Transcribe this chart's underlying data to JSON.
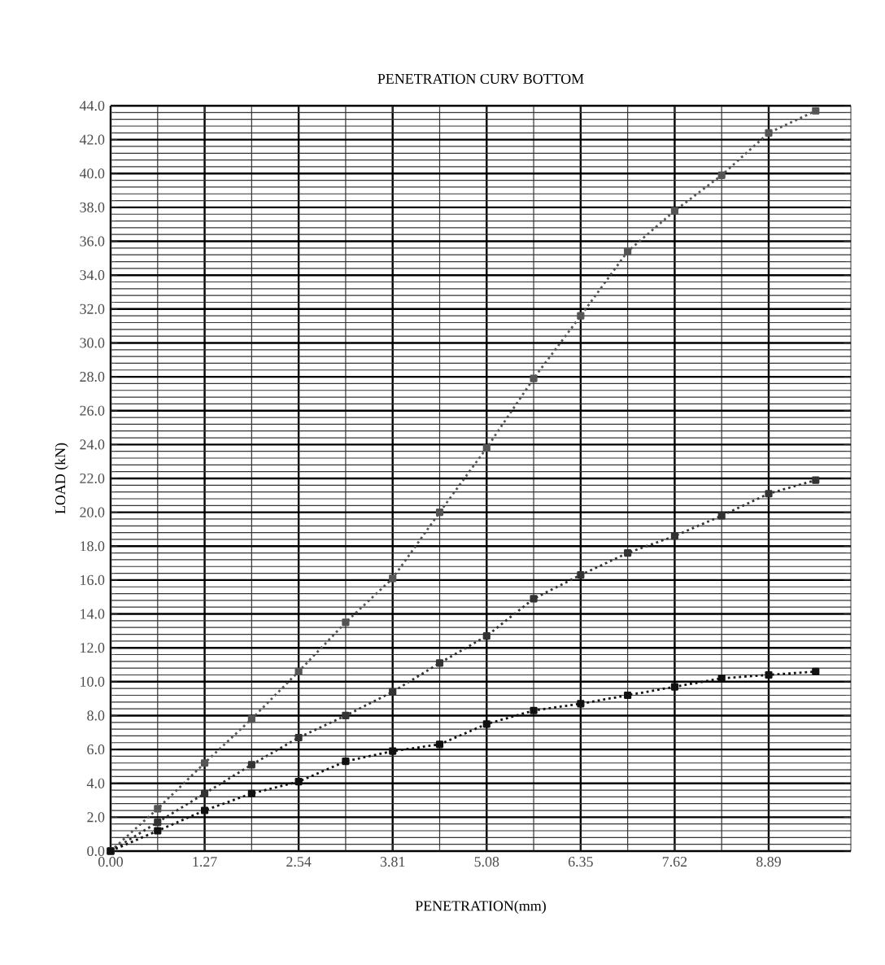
{
  "chart_data": {
    "type": "line",
    "title": "PENETRATION CURV BOTTOM",
    "xlabel": "PENETRATION(mm)",
    "ylabel": "LOAD (kN)",
    "x": [
      0,
      0.635,
      1.27,
      1.905,
      2.54,
      3.175,
      3.81,
      4.445,
      5.08,
      5.715,
      6.35,
      6.985,
      7.62,
      8.255,
      8.89,
      9.525
    ],
    "series": [
      {
        "color": "#555555",
        "values": [
          0,
          2.5,
          5.2,
          7.8,
          10.6,
          13.5,
          16.1,
          20.0,
          23.8,
          27.9,
          31.6,
          35.4,
          37.8,
          39.9,
          42.4,
          43.7
        ]
      },
      {
        "color": "#333333",
        "values": [
          0,
          1.7,
          3.4,
          5.1,
          6.7,
          8.0,
          9.4,
          11.1,
          12.7,
          14.9,
          16.3,
          17.6,
          18.6,
          19.8,
          21.1,
          21.9
        ]
      },
      {
        "color": "#111111",
        "values": [
          0,
          1.2,
          2.4,
          3.4,
          4.1,
          5.3,
          5.9,
          6.3,
          7.5,
          8.3,
          8.7,
          9.2,
          9.7,
          10.2,
          10.4,
          10.6
        ]
      }
    ],
    "xlim": [
      0,
      10.0
    ],
    "xticks": [
      {
        "value": 0,
        "label": "0.00"
      },
      1.27,
      2.54,
      3.81,
      5.08,
      6.35,
      7.62,
      8.89
    ],
    "ylim": [
      0,
      44
    ],
    "yticks": [
      {
        "value": 0,
        "label": "0.0"
      },
      {
        "value": 2,
        "label": "2.0"
      },
      {
        "value": 4,
        "label": "4.0"
      },
      {
        "value": 6,
        "label": "6.0"
      },
      {
        "value": 8,
        "label": "8.0"
      },
      {
        "value": 10,
        "label": "10.0"
      },
      {
        "value": 12,
        "label": "12.0"
      },
      {
        "value": 14,
        "label": "14.0"
      },
      {
        "value": 16,
        "label": "16.0"
      },
      {
        "value": 18,
        "label": "18.0"
      },
      {
        "value": 20,
        "label": "20.0"
      },
      {
        "value": 22,
        "label": "22.0"
      },
      {
        "value": 24,
        "label": "24.0"
      },
      {
        "value": 26,
        "label": "26.0"
      },
      {
        "value": 28,
        "label": "28.0"
      },
      {
        "value": 30,
        "label": "30.0"
      },
      {
        "value": 32,
        "label": "32.0"
      },
      {
        "value": 34,
        "label": "34.0"
      },
      {
        "value": 36,
        "label": "36.0"
      },
      {
        "value": 38,
        "label": "38.0"
      },
      {
        "value": 40,
        "label": "40.0"
      },
      {
        "value": 42,
        "label": "42.0"
      },
      {
        "value": 44,
        "label": "44.0"
      }
    ],
    "grid": true,
    "marker": "square",
    "line_style": "dotted"
  }
}
